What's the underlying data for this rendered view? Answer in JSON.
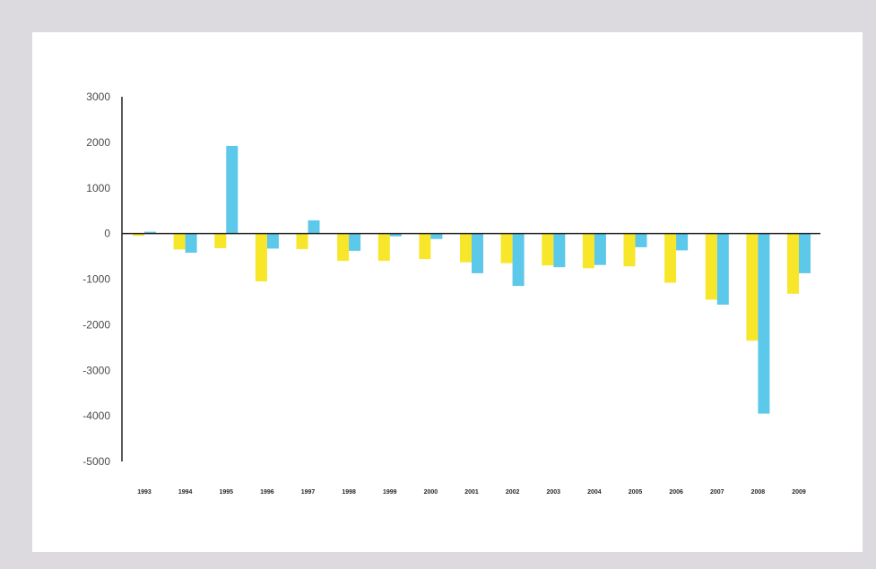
{
  "colors": {
    "background": "#dcd9df",
    "panel": "#ffffff",
    "series_a": "#f7e62a",
    "series_b": "#5cc8ea",
    "axis": "#222222"
  },
  "chart_data": {
    "type": "bar",
    "title": "",
    "xlabel": "",
    "ylabel": "",
    "ylim": [
      -5000,
      3000
    ],
    "y_ticks": [
      3000,
      2000,
      1000,
      0,
      -1000,
      -2000,
      -3000,
      -4000,
      -5000
    ],
    "y_tick_labels": [
      "3000",
      "2000",
      "1000",
      "0",
      "-1000",
      "-2000",
      "-3000",
      "-4000",
      "-5000"
    ],
    "categories": [
      "1993",
      "1994",
      "1995",
      "1996",
      "1997",
      "1998",
      "1999",
      "2000",
      "2001",
      "2002",
      "2003",
      "2004",
      "2005",
      "2006",
      "2007",
      "2008",
      "2009"
    ],
    "legend": "none",
    "grid": false,
    "series": [
      {
        "color": "#f7e62a",
        "values": [
          -50,
          -350,
          -320,
          -1050,
          -340,
          -600,
          -600,
          -560,
          -630,
          -650,
          -700,
          -760,
          -720,
          -1080,
          -1450,
          -2350,
          -1320
        ]
      },
      {
        "color": "#5cc8ea",
        "values": [
          40,
          -420,
          1920,
          -330,
          290,
          -380,
          -60,
          -120,
          -870,
          -1150,
          -740,
          -690,
          -300,
          -370,
          -1560,
          -3950,
          -870
        ]
      }
    ]
  }
}
